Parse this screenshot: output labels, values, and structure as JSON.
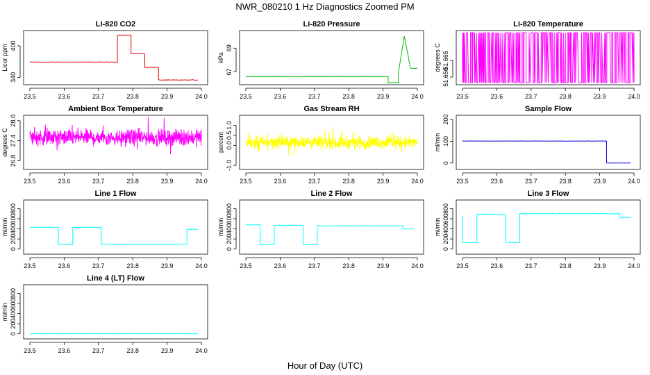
{
  "figure_title": "NWR_080210  1 Hz Diagnostics Zoomed PM",
  "x_axis_label": "Hour of Day (UTC)",
  "chart_data": [
    {
      "type": "line",
      "title": "Li-820 CO2",
      "xlabel": "",
      "ylabel": "Licor ppm",
      "xlim": [
        23.5,
        24.0
      ],
      "ylim": [
        330,
        425
      ],
      "xticks": [
        "23.5",
        "23.6",
        "23.7",
        "23.8",
        "23.9",
        "24.0"
      ],
      "yticks": [
        "340",
        "400"
      ],
      "color": "#dd0000",
      "style": "steps",
      "x": [
        23.5,
        23.755,
        23.755,
        23.795,
        23.795,
        23.835,
        23.835,
        23.875,
        23.875,
        23.99
      ],
      "y": [
        369,
        369,
        420,
        420,
        385,
        385,
        359,
        359,
        335,
        335
      ],
      "noise": 0.8
    },
    {
      "type": "line",
      "title": "Li-820 Pressure",
      "xlabel": "",
      "ylabel": "kPa",
      "xlim": [
        23.5,
        24.0
      ],
      "ylim": [
        66.1,
        70.3
      ],
      "xticks": [
        "23.5",
        "23.6",
        "23.7",
        "23.8",
        "23.9",
        "24.0"
      ],
      "yticks": [
        "67",
        "69"
      ],
      "color": "#00bb00",
      "style": "steps",
      "x": [
        23.5,
        23.915,
        23.915,
        23.945,
        23.945,
        23.962,
        23.98,
        23.98,
        24.0
      ],
      "y": [
        66.6,
        66.6,
        66.1,
        66.1,
        67.0,
        70.0,
        67.3,
        67.3,
        67.3
      ],
      "noise": 0.02
    },
    {
      "type": "line",
      "title": "Li-820 Temperature",
      "xlabel": "",
      "ylabel": "degrees C",
      "xlim": [
        23.5,
        24.0
      ],
      "ylim": [
        51.645,
        51.69
      ],
      "xticks": [
        "23.5",
        "23.6",
        "23.7",
        "23.8",
        "23.9",
        "24.0"
      ],
      "yticks": [
        "51.650",
        "51.665"
      ],
      "color": "#ff00ff",
      "style": "binary",
      "low": 51.645,
      "high": 51.69,
      "noise": 0
    },
    {
      "type": "line",
      "title": "Ambient Box Temperature",
      "xlabel": "",
      "ylabel": "degrees C",
      "xlim": [
        23.5,
        24.0
      ],
      "ylim": [
        26.6,
        28.1
      ],
      "xticks": [
        "23.5",
        "23.6",
        "23.7",
        "23.8",
        "23.9",
        "24.0"
      ],
      "yticks": [
        "26.8",
        "27.4",
        "28.0"
      ],
      "color": "#ff00ff",
      "style": "noise",
      "x": [
        23.5,
        24.0
      ],
      "y": [
        27.5,
        27.5
      ],
      "noise": 0.35
    },
    {
      "type": "line",
      "title": "Gas Stream RH",
      "xlabel": "",
      "ylabel": "percent",
      "xlim": [
        23.5,
        24.0
      ],
      "ylim": [
        -1.1,
        1.4
      ],
      "xticks": [
        "23.5",
        "23.6",
        "23.7",
        "23.8",
        "23.9",
        "24.0"
      ],
      "yticks": [
        "-1.0",
        "0.0",
        "0.5",
        "1.0"
      ],
      "color": "#ffff00",
      "style": "noise",
      "x": [
        23.5,
        24.0
      ],
      "y": [
        0.15,
        0.15
      ],
      "noise": 0.45
    },
    {
      "type": "line",
      "title": "Sample Flow",
      "xlabel": "",
      "ylabel": "ml/min",
      "xlim": [
        23.5,
        24.0
      ],
      "ylim": [
        -20,
        210
      ],
      "xticks": [
        "23.5",
        "23.6",
        "23.7",
        "23.8",
        "23.9",
        "24.0"
      ],
      "yticks": [
        "0",
        "100",
        "200"
      ],
      "color": "#0000dd",
      "style": "steps",
      "x": [
        23.5,
        23.92,
        23.92,
        23.99
      ],
      "y": [
        101,
        101,
        0,
        0
      ],
      "noise": 1
    },
    {
      "type": "line",
      "title": "Line 1 Flow",
      "xlabel": "",
      "ylabel": "ml/min",
      "xlim": [
        23.5,
        24.0
      ],
      "ylim": [
        -60,
        930
      ],
      "xticks": [
        "23.5",
        "23.6",
        "23.7",
        "23.8",
        "23.9",
        "24.0"
      ],
      "yticks": [
        "0",
        "200",
        "400",
        "600",
        "800"
      ],
      "color": "#00ffff",
      "style": "steps",
      "x": [
        23.5,
        23.583,
        23.583,
        23.625,
        23.625,
        23.708,
        23.708,
        23.958,
        23.958,
        23.99
      ],
      "y": [
        430,
        430,
        90,
        90,
        430,
        430,
        95,
        95,
        390,
        390
      ],
      "noise": 8
    },
    {
      "type": "line",
      "title": "Line 2 Flow",
      "xlabel": "",
      "ylabel": "ml/min",
      "xlim": [
        23.5,
        24.0
      ],
      "ylim": [
        -60,
        930
      ],
      "xticks": [
        "23.5",
        "23.6",
        "23.7",
        "23.8",
        "23.9",
        "24.0"
      ],
      "yticks": [
        "0",
        "200",
        "400",
        "600",
        "800"
      ],
      "color": "#00ffff",
      "style": "steps",
      "x": [
        23.5,
        23.542,
        23.542,
        23.583,
        23.583,
        23.667,
        23.667,
        23.708,
        23.708,
        23.958,
        23.958,
        23.99
      ],
      "y": [
        480,
        480,
        90,
        90,
        470,
        470,
        90,
        90,
        460,
        460,
        400,
        400
      ],
      "noise": 10
    },
    {
      "type": "line",
      "title": "Line 3 Flow",
      "xlabel": "",
      "ylabel": "ml/min",
      "xlim": [
        23.5,
        24.0
      ],
      "ylim": [
        -60,
        930
      ],
      "xticks": [
        "23.5",
        "23.6",
        "23.7",
        "23.8",
        "23.9",
        "24.0"
      ],
      "yticks": [
        "0",
        "200",
        "400",
        "600",
        "800"
      ],
      "color": "#00ffff",
      "style": "steps",
      "x": [
        23.5,
        23.5,
        23.542,
        23.542,
        23.625,
        23.625,
        23.667,
        23.667,
        23.958,
        23.958,
        23.99
      ],
      "y": [
        660,
        130,
        130,
        690,
        690,
        130,
        130,
        700,
        700,
        620,
        620
      ],
      "noise": 12
    },
    {
      "type": "line",
      "title": "Line 4 (LT) Flow",
      "xlabel": "",
      "ylabel": "ml/min",
      "xlim": [
        23.5,
        24.0
      ],
      "ylim": [
        -60,
        930
      ],
      "xticks": [
        "23.5",
        "23.6",
        "23.7",
        "23.8",
        "23.9",
        "24.0"
      ],
      "yticks": [
        "0",
        "200",
        "400",
        "600",
        "800"
      ],
      "color": "#00ffff",
      "style": "steps",
      "x": [
        23.5,
        23.99
      ],
      "y": [
        0,
        0
      ],
      "noise": 1
    }
  ]
}
